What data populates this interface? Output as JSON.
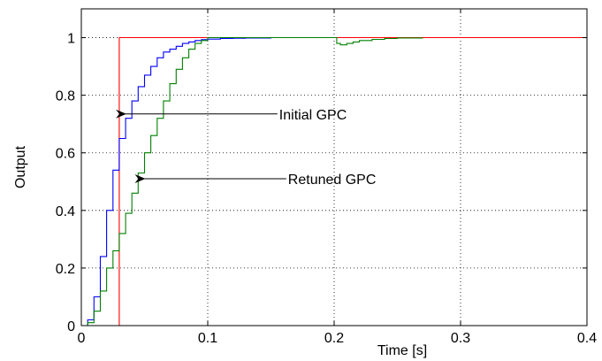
{
  "chart_data": {
    "type": "line",
    "title": "",
    "xlabel": "Time [s]",
    "ylabel": "Output",
    "xlim": [
      0,
      0.4
    ],
    "ylim": [
      0,
      1.1
    ],
    "grid": true,
    "xticks": [
      0,
      0.1,
      0.2,
      0.3,
      0.4
    ],
    "yticks": [
      0,
      0.2,
      0.4,
      0.6,
      0.8,
      1
    ],
    "xtick_labels": [
      "0",
      "0.1",
      "0.2",
      "0.3",
      "0.4"
    ],
    "ytick_labels": [
      "0",
      "0.2",
      "0.4",
      "0.6",
      "0.8",
      "1"
    ],
    "series": [
      {
        "color": "#ff0000",
        "step": false,
        "x": [
          0,
          0.03,
          0.03,
          0.4
        ],
        "y": [
          0,
          0,
          1,
          1
        ]
      },
      {
        "color": "#0000ff",
        "step": true,
        "x": [
          0,
          0.005,
          0.01,
          0.015,
          0.02,
          0.025,
          0.03,
          0.035,
          0.04,
          0.045,
          0.05,
          0.055,
          0.06,
          0.065,
          0.07,
          0.075,
          0.08,
          0.085,
          0.09,
          0.095,
          0.1,
          0.11,
          0.12,
          0.13,
          0.15
        ],
        "y": [
          0,
          0.02,
          0.1,
          0.24,
          0.4,
          0.54,
          0.65,
          0.72,
          0.78,
          0.83,
          0.87,
          0.9,
          0.93,
          0.95,
          0.96,
          0.97,
          0.98,
          0.985,
          0.99,
          0.993,
          0.995,
          0.997,
          0.998,
          0.999,
          1.0
        ]
      },
      {
        "color": "#008000",
        "step": true,
        "x": [
          0,
          0.005,
          0.01,
          0.015,
          0.02,
          0.025,
          0.03,
          0.035,
          0.04,
          0.045,
          0.05,
          0.055,
          0.06,
          0.065,
          0.07,
          0.075,
          0.08,
          0.085,
          0.09,
          0.095,
          0.1,
          0.105,
          0.11,
          0.12,
          0.2,
          0.202,
          0.205,
          0.21,
          0.215,
          0.22,
          0.23,
          0.24,
          0.25,
          0.27
        ],
        "y": [
          0,
          0.01,
          0.05,
          0.12,
          0.2,
          0.26,
          0.32,
          0.39,
          0.46,
          0.53,
          0.6,
          0.66,
          0.72,
          0.78,
          0.84,
          0.89,
          0.93,
          0.96,
          0.98,
          0.99,
          1.0,
          1.0,
          1.0,
          1.0,
          1.0,
          0.98,
          0.975,
          0.98,
          0.985,
          0.99,
          0.994,
          0.997,
          0.999,
          1.0
        ]
      }
    ],
    "annotations": [
      {
        "text": "Initial GPC",
        "arrow_to": [
          0.035,
          0.735
        ],
        "text_at": [
          0.06,
          0.735
        ]
      },
      {
        "text": "Retuned GPC",
        "arrow_to": [
          0.05,
          0.51
        ],
        "text_at": [
          0.067,
          0.51
        ]
      }
    ]
  }
}
